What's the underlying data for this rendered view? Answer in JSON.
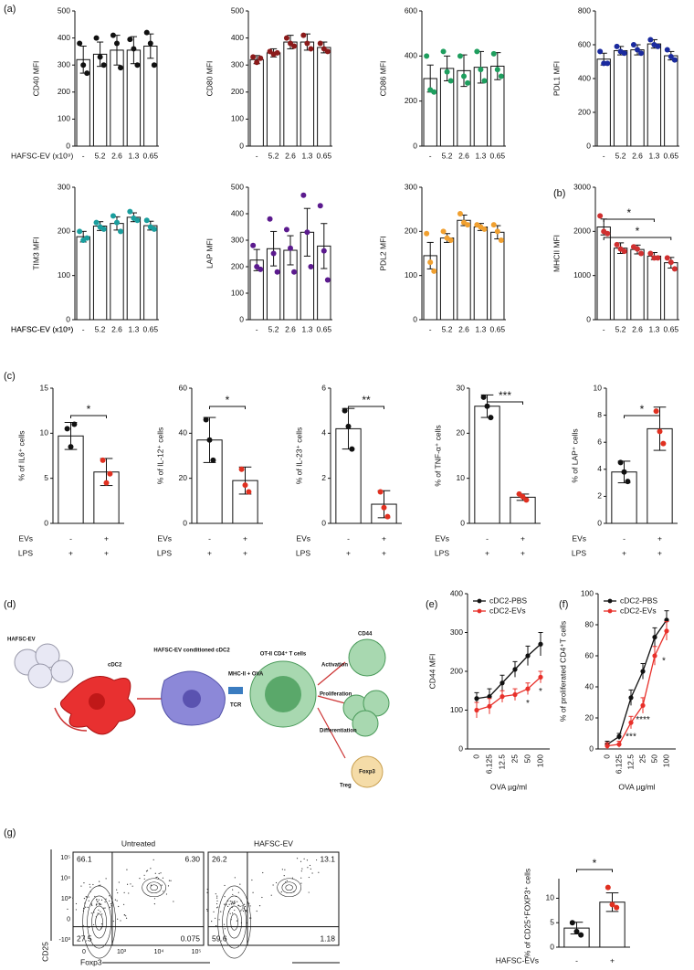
{
  "panels": [
    "(a)",
    "(b)",
    "(c)",
    "(d)",
    "(e)",
    "(f)",
    "(g)"
  ],
  "diagram": {
    "labels": [
      "HAFSC-EV",
      "cDC2",
      "HAFSC-EV conditioned cDC2",
      "MHC-II + OVA",
      "TCR",
      "OT-II CD4⁺ T cells",
      "CD44",
      "Activation",
      "Proliferation",
      "Differentiation",
      "Treg",
      "Foxp3"
    ]
  },
  "flow": {
    "ylabel": "CD25",
    "xlabel": "Foxp3",
    "xticks": [
      "0",
      "10³",
      "10⁴",
      "10⁵"
    ],
    "yticks": [
      "-10³",
      "0",
      "10³",
      "10⁴",
      "10⁵"
    ],
    "plots": [
      {
        "title": "Untreated",
        "quadrants": [
          "66.1",
          "6.30",
          "27.5",
          "0.075"
        ]
      },
      {
        "title": "HAFSC-EV",
        "quadrants": [
          "26.2",
          "13.1",
          "59.6",
          "1.18"
        ]
      }
    ]
  },
  "chart_data": [
    {
      "type": "bar",
      "ylabel": "CD40 MFI",
      "xlabel": "HAFSC-EV (x10⁹)",
      "categories": [
        "-",
        "5.2",
        "2.6",
        "1.3",
        "0.65"
      ],
      "values": [
        320,
        340,
        355,
        355,
        370
      ],
      "errors": [
        50,
        45,
        55,
        50,
        45
      ],
      "points": [
        [
          380,
          300,
          270
        ],
        [
          400,
          330,
          300
        ],
        [
          410,
          380,
          290
        ],
        [
          395,
          360,
          300
        ],
        [
          420,
          380,
          300
        ]
      ],
      "color": "#111111",
      "ylim": [
        0,
        500
      ],
      "yticks": [
        0,
        100,
        200,
        300,
        400,
        500
      ]
    },
    {
      "type": "bar",
      "ylabel": "CD80 MFI",
      "categories": [
        "-",
        "5.2",
        "2.6",
        "1.3",
        "0.65"
      ],
      "values": [
        320,
        345,
        385,
        385,
        365
      ],
      "errors": [
        15,
        15,
        25,
        30,
        20
      ],
      "points": [
        [
          330,
          310,
          325
        ],
        [
          350,
          340,
          345
        ],
        [
          400,
          380,
          370
        ],
        [
          410,
          380,
          360
        ],
        [
          380,
          360,
          350
        ]
      ],
      "color": "#8b1a1a",
      "ylim": [
        0,
        500
      ],
      "yticks": [
        0,
        100,
        200,
        300,
        400,
        500
      ]
    },
    {
      "type": "bar",
      "ylabel": "CD86 MFI",
      "categories": [
        "-",
        "5.2",
        "2.6",
        "1.3",
        "0.65"
      ],
      "values": [
        300,
        345,
        335,
        350,
        355
      ],
      "errors": [
        60,
        55,
        70,
        70,
        60
      ],
      "points": [
        [
          400,
          250,
          240
        ],
        [
          420,
          330,
          290
        ],
        [
          400,
          310,
          280
        ],
        [
          420,
          340,
          290
        ],
        [
          410,
          340,
          310
        ]
      ],
      "color": "#1e9e5e",
      "ylim": [
        0,
        600
      ],
      "yticks": [
        0,
        200,
        400,
        600
      ]
    },
    {
      "type": "bar",
      "ylabel": "PDL1 MFI",
      "categories": [
        "-",
        "5.2",
        "2.6",
        "1.3",
        "0.65"
      ],
      "values": [
        515,
        565,
        570,
        605,
        535
      ],
      "errors": [
        35,
        25,
        30,
        25,
        25
      ],
      "points": [
        [
          560,
          490,
          490
        ],
        [
          590,
          560,
          550
        ],
        [
          600,
          570,
          550
        ],
        [
          630,
          600,
          590
        ],
        [
          570,
          530,
          510
        ]
      ],
      "color": "#1a2a9e",
      "ylim": [
        0,
        800
      ],
      "yticks": [
        0,
        200,
        400,
        600,
        800
      ]
    },
    {
      "type": "bar",
      "ylabel": "TIM3 MFI",
      "xlabel": "HAFSC-EV (x10⁹)",
      "categories": [
        "-",
        "5.2",
        "2.6",
        "1.3",
        "0.65"
      ],
      "values": [
        188,
        212,
        218,
        232,
        213
      ],
      "errors": [
        12,
        10,
        15,
        10,
        10
      ],
      "points": [
        [
          200,
          180,
          185
        ],
        [
          220,
          210,
          205
        ],
        [
          235,
          220,
          200
        ],
        [
          245,
          230,
          225
        ],
        [
          225,
          210,
          205
        ]
      ],
      "color": "#1a9e9e",
      "ylim": [
        0,
        300
      ],
      "yticks": [
        0,
        100,
        200,
        300
      ]
    },
    {
      "type": "bar",
      "ylabel": "LAP MFI",
      "categories": [
        "-",
        "5.2",
        "2.6",
        "1.3",
        "0.65"
      ],
      "values": [
        225,
        268,
        262,
        330,
        278
      ],
      "errors": [
        40,
        65,
        55,
        90,
        85
      ],
      "points": [
        [
          280,
          200,
          190
        ],
        [
          380,
          250,
          180
        ],
        [
          340,
          270,
          180
        ],
        [
          470,
          330,
          200
        ],
        [
          430,
          260,
          150
        ]
      ],
      "color": "#5b1a8e",
      "ylim": [
        0,
        500
      ],
      "yticks": [
        0,
        100,
        200,
        300,
        400,
        500
      ]
    },
    {
      "type": "bar",
      "ylabel": "PDL2 MFI",
      "categories": [
        "-",
        "5.2",
        "2.6",
        "1.3",
        "0.65"
      ],
      "values": [
        145,
        185,
        225,
        210,
        198
      ],
      "errors": [
        30,
        10,
        12,
        8,
        15
      ],
      "points": [
        [
          195,
          130,
          110
        ],
        [
          200,
          185,
          180
        ],
        [
          240,
          220,
          215
        ],
        [
          215,
          210,
          205
        ],
        [
          215,
          200,
          180
        ]
      ],
      "color": "#f0a030",
      "ylim": [
        0,
        300
      ],
      "yticks": [
        0,
        100,
        200,
        300
      ]
    },
    {
      "type": "bar",
      "ylabel": "MHCII MFI",
      "xlabel": "HAFSC-EV (x10⁹)",
      "categories": [
        "-",
        "5.2",
        "2.6",
        "1.3",
        "0.65"
      ],
      "values": [
        2100,
        1620,
        1590,
        1440,
        1290
      ],
      "errors": [
        180,
        120,
        100,
        80,
        120
      ],
      "points": [
        [
          2350,
          2000,
          1950
        ],
        [
          1700,
          1600,
          1550
        ],
        [
          1650,
          1600,
          1500
        ],
        [
          1500,
          1400,
          1400
        ],
        [
          1400,
          1300,
          1150
        ]
      ],
      "color": "#d03030",
      "ylim": [
        0,
        3000
      ],
      "yticks": [
        0,
        1000,
        2000,
        3000
      ],
      "annotations": [
        "*",
        "*"
      ]
    },
    {
      "type": "bar",
      "ylabel": "% of IL6⁺ cells",
      "x_rows": [
        {
          "label": "EVs",
          "values": [
            "-",
            "+"
          ]
        },
        {
          "label": "LPS",
          "values": [
            "+",
            "+"
          ]
        }
      ],
      "values": [
        9.7,
        5.7
      ],
      "errors": [
        1.5,
        1.5
      ],
      "points": [
        [
          10.5,
          8.5,
          11
        ],
        [
          7,
          4.5,
          5.5
        ]
      ],
      "point_colors": [
        "#111111",
        "#e03020"
      ],
      "ylim": [
        0,
        15
      ],
      "yticks": [
        0,
        5,
        10,
        15
      ],
      "annotations": [
        "*"
      ]
    },
    {
      "type": "bar",
      "ylabel": "% of IL-12⁺ cells",
      "x_rows": [
        {
          "label": "EVs",
          "values": [
            "-",
            "+"
          ]
        },
        {
          "label": "LPS",
          "values": [
            "+",
            "+"
          ]
        }
      ],
      "values": [
        37,
        19
      ],
      "errors": [
        10,
        6
      ],
      "points": [
        [
          46,
          37,
          28
        ],
        [
          24,
          17,
          14
        ]
      ],
      "point_colors": [
        "#111111",
        "#e03020"
      ],
      "ylim": [
        0,
        60
      ],
      "yticks": [
        0,
        20,
        40,
        60
      ],
      "annotations": [
        "*"
      ]
    },
    {
      "type": "bar",
      "ylabel": "% of IL-23⁺ cells",
      "x_rows": [
        {
          "label": "EVs",
          "values": [
            "-",
            "+"
          ]
        },
        {
          "label": "LPS",
          "values": [
            "+",
            "+"
          ]
        }
      ],
      "values": [
        4.2,
        0.85
      ],
      "errors": [
        0.9,
        0.6
      ],
      "points": [
        [
          5,
          4.3,
          3.3
        ],
        [
          1.4,
          0.7,
          0.3
        ]
      ],
      "point_colors": [
        "#111111",
        "#e03020"
      ],
      "ylim": [
        0,
        6
      ],
      "yticks": [
        0,
        2,
        4,
        6
      ],
      "annotations": [
        "**"
      ]
    },
    {
      "type": "bar",
      "ylabel": "% of TNF-α⁺ cells",
      "x_rows": [
        {
          "label": "EVs",
          "values": [
            "-",
            "+"
          ]
        },
        {
          "label": "LPS",
          "values": [
            "+",
            "+"
          ]
        }
      ],
      "values": [
        26,
        5.8
      ],
      "errors": [
        2.5,
        0.7
      ],
      "points": [
        [
          28,
          26,
          23.5
        ],
        [
          6.5,
          5.9,
          5.2
        ]
      ],
      "point_colors": [
        "#111111",
        "#e03020"
      ],
      "ylim": [
        0,
        30
      ],
      "yticks": [
        0,
        10,
        20,
        30
      ],
      "annotations": [
        "***"
      ]
    },
    {
      "type": "bar",
      "ylabel": "% of LAP⁺ cells",
      "x_rows": [
        {
          "label": "EVs",
          "values": [
            "-",
            "+"
          ]
        },
        {
          "label": "LPS",
          "values": [
            "+",
            "+"
          ]
        }
      ],
      "values": [
        3.8,
        7.0
      ],
      "errors": [
        0.8,
        1.6
      ],
      "points": [
        [
          4.5,
          3.8,
          3.1
        ],
        [
          8.3,
          6.8,
          5.9
        ]
      ],
      "point_colors": [
        "#111111",
        "#e03020"
      ],
      "ylim": [
        0,
        10
      ],
      "yticks": [
        0,
        2,
        4,
        6,
        8,
        10
      ],
      "annotations": [
        "*"
      ]
    },
    {
      "type": "line",
      "ylabel": "CD44 MFI",
      "xlabel": "OVA µg/ml",
      "categories": [
        "0",
        "6.125",
        "12.5",
        "25",
        "50",
        "100"
      ],
      "series": [
        {
          "name": "cDC2-PBS",
          "color": "#111111",
          "values": [
            130,
            135,
            170,
            205,
            240,
            270
          ],
          "errors": [
            15,
            20,
            20,
            20,
            25,
            30
          ]
        },
        {
          "name": "cDC2-EVs",
          "color": "#e8302a",
          "values": [
            100,
            110,
            135,
            140,
            155,
            185
          ],
          "errors": [
            20,
            20,
            15,
            15,
            15,
            15
          ]
        }
      ],
      "ylim": [
        0,
        400
      ],
      "yticks": [
        0,
        100,
        200,
        300,
        400
      ],
      "annotations": [
        "*",
        "*"
      ]
    },
    {
      "type": "line",
      "ylabel": "% of proliferated CD4⁺T cells",
      "xlabel": "OVA µg/ml",
      "categories": [
        "0",
        "6.125",
        "12.5",
        "25",
        "50",
        "100"
      ],
      "series": [
        {
          "name": "cDC2-PBS",
          "color": "#111111",
          "values": [
            3,
            8,
            33,
            50,
            72,
            83
          ],
          "errors": [
            2,
            2,
            5,
            5,
            6,
            6
          ]
        },
        {
          "name": "cDC2-EVs",
          "color": "#e8302a",
          "values": [
            2,
            3,
            17,
            28,
            60,
            76
          ],
          "errors": [
            2,
            2,
            4,
            5,
            6,
            6
          ]
        }
      ],
      "ylim": [
        0,
        100
      ],
      "yticks": [
        0,
        20,
        40,
        60,
        80,
        100
      ],
      "annotations": [
        "***",
        "****",
        "*"
      ]
    },
    {
      "type": "bar",
      "ylabel": "% of CD25⁺FOXP3⁺ cells",
      "x_rows": [
        {
          "label": "HAFSC-EVs",
          "values": [
            "-",
            "+"
          ]
        }
      ],
      "values": [
        3.9,
        9.2
      ],
      "errors": [
        1.2,
        1.9
      ],
      "points": [
        [
          5,
          3.2,
          2.5
        ],
        [
          12.2,
          8.7,
          8.1
        ]
      ],
      "point_colors": [
        "#111111",
        "#e03020"
      ],
      "ylim": [
        0,
        14
      ],
      "yticks": [
        0,
        5,
        10
      ],
      "annotations": [
        "*"
      ]
    }
  ]
}
